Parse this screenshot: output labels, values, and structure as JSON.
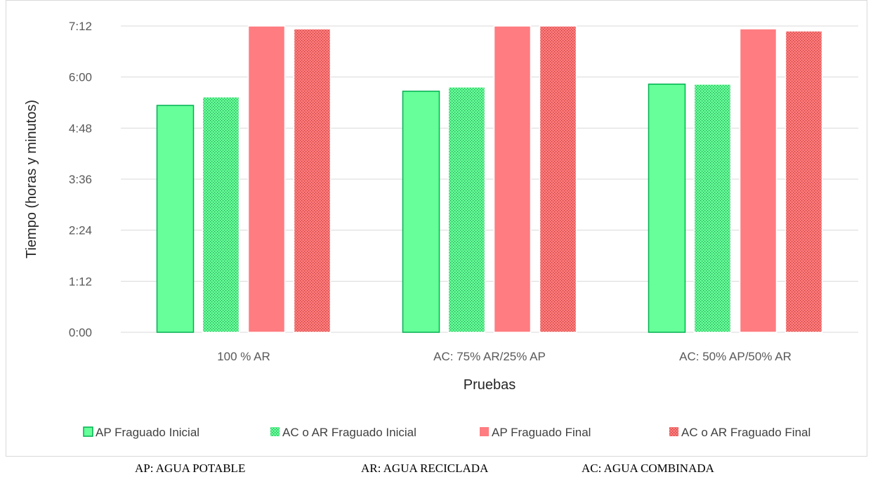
{
  "chart_data": {
    "type": "bar",
    "title": "",
    "xlabel": "Pruebas",
    "ylabel": "Tiempo (horas y minutos)",
    "y_unit": "minutes",
    "ylim": [
      0,
      432
    ],
    "y_ticks": [
      0,
      72,
      144,
      216,
      288,
      360,
      432
    ],
    "y_tick_labels": [
      "0:00",
      "1:12",
      "2:24",
      "3:36",
      "4:48",
      "6:00",
      "7:12"
    ],
    "grid": true,
    "legend_position": "bottom",
    "categories": [
      "100 % AR",
      "AC: 75% AR/25% AP",
      "AC: 50% AP/50% AR"
    ],
    "series": [
      {
        "name": "AP Fraguado Inicial",
        "values": [
          320,
          340,
          350
        ],
        "color": "#66ff99",
        "border": "#00b050",
        "pattern": "solid"
      },
      {
        "name": "AC o AR Fraguado Inicial",
        "values": [
          332,
          346,
          350
        ],
        "color": "#66ff99",
        "border": "#ffffff",
        "pattern": "dotted"
      },
      {
        "name": "AP Fraguado Final",
        "values": [
          432,
          432,
          428
        ],
        "color": "#ff7c80",
        "border": "#ffffff",
        "pattern": "solid"
      },
      {
        "name": "AC o AR Fraguado Final",
        "values": [
          428,
          432,
          425
        ],
        "color": "#ff7c80",
        "border": "#ffffff",
        "pattern": "dotted"
      }
    ]
  },
  "footnote": {
    "ap": "AP: AGUA POTABLE",
    "ar": "AR: AGUA RECICLADA",
    "ac": "AC: AGUA COMBINADA"
  }
}
